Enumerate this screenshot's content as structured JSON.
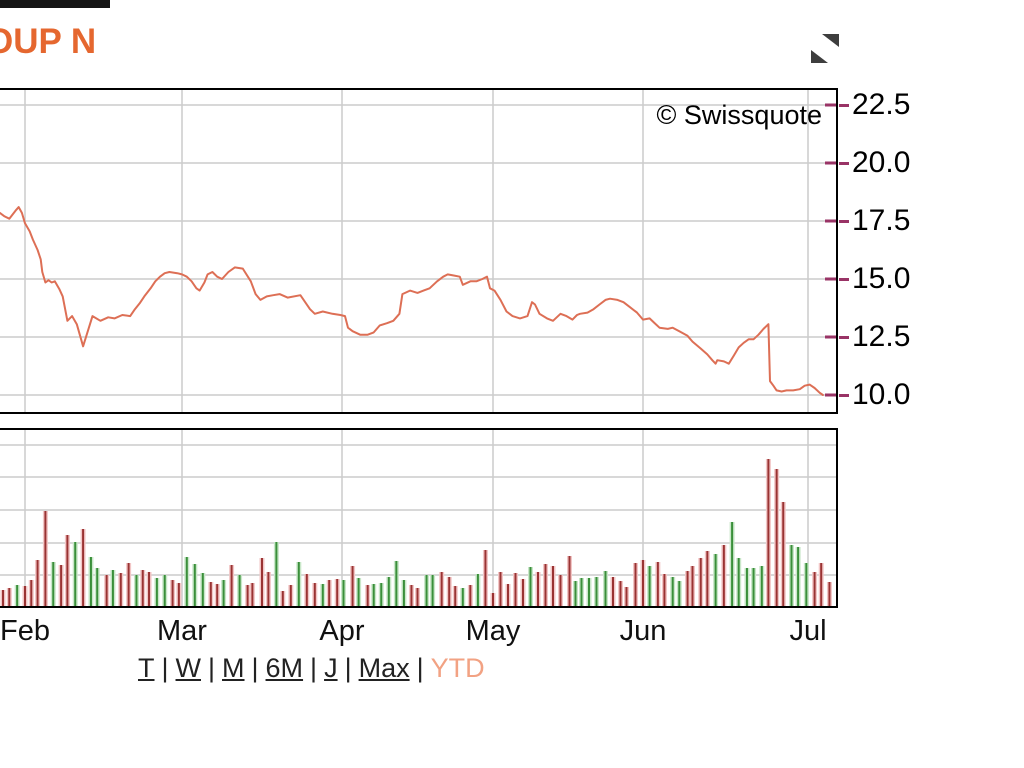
{
  "header": {
    "title_fragment": "OUP N"
  },
  "watermark": "© Swissquote",
  "colors": {
    "title": "#e5672f",
    "price_line": "#dd6f55",
    "grid": "#cccccc",
    "border": "#000000",
    "axis_tick": "#993366",
    "volume_up_core": "#3a8f3a",
    "volume_up_halo": "#c9e7c9",
    "volume_down_core": "#9a3333",
    "volume_down_halo": "#f2c6c6",
    "link": "#222222",
    "link_active": "#f2a283"
  },
  "period_selector": {
    "links": [
      "T",
      "W",
      "M",
      "6M",
      "J",
      "Max"
    ],
    "active": "YTD",
    "separator": "|"
  },
  "chart_data": [
    {
      "type": "line",
      "name": "price",
      "title": "",
      "xlabel": "",
      "ylabel": "",
      "x_unit": "month index (1=Feb, 2=Mar, 3=Apr, 4=May, 5=Jun, 6=Jul)",
      "x_tick_labels": [
        "Feb",
        "Mar",
        "Apr",
        "May",
        "Jun",
        "Jul"
      ],
      "y_ticks": [
        22.5,
        20.0,
        17.5,
        15.0,
        12.5,
        10.0
      ],
      "ylim": [
        9.3,
        23.1
      ],
      "grid": true,
      "legend": false,
      "points": [
        [
          0.84,
          17.85
        ],
        [
          0.87,
          17.7
        ],
        [
          0.9,
          17.6
        ],
        [
          0.94,
          17.95
        ],
        [
          0.96,
          18.1
        ],
        [
          0.98,
          17.85
        ],
        [
          1.0,
          17.4
        ],
        [
          1.03,
          17.05
        ],
        [
          1.05,
          16.7
        ],
        [
          1.08,
          16.25
        ],
        [
          1.1,
          15.85
        ],
        [
          1.11,
          15.3
        ],
        [
          1.13,
          14.85
        ],
        [
          1.15,
          14.95
        ],
        [
          1.17,
          14.85
        ],
        [
          1.19,
          14.9
        ],
        [
          1.22,
          14.55
        ],
        [
          1.24,
          14.25
        ],
        [
          1.27,
          13.2
        ],
        [
          1.3,
          13.4
        ],
        [
          1.33,
          13.05
        ],
        [
          1.37,
          12.1
        ],
        [
          1.4,
          12.75
        ],
        [
          1.43,
          13.4
        ],
        [
          1.48,
          13.2
        ],
        [
          1.53,
          13.35
        ],
        [
          1.57,
          13.3
        ],
        [
          1.62,
          13.45
        ],
        [
          1.67,
          13.4
        ],
        [
          1.7,
          13.7
        ],
        [
          1.73,
          13.95
        ],
        [
          1.76,
          14.25
        ],
        [
          1.8,
          14.6
        ],
        [
          1.83,
          14.9
        ],
        [
          1.86,
          15.1
        ],
        [
          1.89,
          15.25
        ],
        [
          1.92,
          15.3
        ],
        [
          1.97,
          15.25
        ],
        [
          2.0,
          15.2
        ],
        [
          2.03,
          15.1
        ],
        [
          2.06,
          14.9
        ],
        [
          2.09,
          14.6
        ],
        [
          2.11,
          14.5
        ],
        [
          2.14,
          14.85
        ],
        [
          2.16,
          15.2
        ],
        [
          2.19,
          15.3
        ],
        [
          2.22,
          15.1
        ],
        [
          2.25,
          15.0
        ],
        [
          2.29,
          15.3
        ],
        [
          2.33,
          15.5
        ],
        [
          2.38,
          15.45
        ],
        [
          2.43,
          14.9
        ],
        [
          2.46,
          14.35
        ],
        [
          2.49,
          14.1
        ],
        [
          2.53,
          14.25
        ],
        [
          2.57,
          14.3
        ],
        [
          2.61,
          14.35
        ],
        [
          2.66,
          14.2
        ],
        [
          2.74,
          14.3
        ],
        [
          2.8,
          13.7
        ],
        [
          2.83,
          13.5
        ],
        [
          2.88,
          13.6
        ],
        [
          2.94,
          13.5
        ],
        [
          2.99,
          13.45
        ],
        [
          3.02,
          13.4
        ],
        [
          3.04,
          12.9
        ],
        [
          3.07,
          12.75
        ],
        [
          3.12,
          12.6
        ],
        [
          3.17,
          12.6
        ],
        [
          3.21,
          12.7
        ],
        [
          3.25,
          13.0
        ],
        [
          3.3,
          13.1
        ],
        [
          3.34,
          13.2
        ],
        [
          3.38,
          13.5
        ],
        [
          3.4,
          14.35
        ],
        [
          3.45,
          14.5
        ],
        [
          3.5,
          14.4
        ],
        [
          3.54,
          14.5
        ],
        [
          3.58,
          14.6
        ],
        [
          3.63,
          14.9
        ],
        [
          3.67,
          15.1
        ],
        [
          3.7,
          15.2
        ],
        [
          3.74,
          15.15
        ],
        [
          3.78,
          15.1
        ],
        [
          3.8,
          14.75
        ],
        [
          3.85,
          14.9
        ],
        [
          3.89,
          14.9
        ],
        [
          3.93,
          15.0
        ],
        [
          3.96,
          15.1
        ],
        [
          3.98,
          14.6
        ],
        [
          4.01,
          14.5
        ],
        [
          4.05,
          14.1
        ],
        [
          4.09,
          13.6
        ],
        [
          4.13,
          13.4
        ],
        [
          4.18,
          13.3
        ],
        [
          4.23,
          13.4
        ],
        [
          4.26,
          14.0
        ],
        [
          4.28,
          13.9
        ],
        [
          4.31,
          13.5
        ],
        [
          4.36,
          13.3
        ],
        [
          4.4,
          13.2
        ],
        [
          4.45,
          13.5
        ],
        [
          4.49,
          13.4
        ],
        [
          4.53,
          13.25
        ],
        [
          4.56,
          13.45
        ],
        [
          4.58,
          13.5
        ],
        [
          4.63,
          13.55
        ],
        [
          4.67,
          13.7
        ],
        [
          4.71,
          13.9
        ],
        [
          4.75,
          14.1
        ],
        [
          4.78,
          14.15
        ],
        [
          4.83,
          14.1
        ],
        [
          4.87,
          14.0
        ],
        [
          4.91,
          13.8
        ],
        [
          4.96,
          13.55
        ],
        [
          5.0,
          13.25
        ],
        [
          5.04,
          13.3
        ],
        [
          5.07,
          13.1
        ],
        [
          5.1,
          12.9
        ],
        [
          5.15,
          12.85
        ],
        [
          5.18,
          12.9
        ],
        [
          5.22,
          12.75
        ],
        [
          5.27,
          12.55
        ],
        [
          5.3,
          12.3
        ],
        [
          5.35,
          12.0
        ],
        [
          5.39,
          11.75
        ],
        [
          5.42,
          11.5
        ],
        [
          5.44,
          11.35
        ],
        [
          5.45,
          11.5
        ],
        [
          5.49,
          11.45
        ],
        [
          5.52,
          11.35
        ],
        [
          5.55,
          11.7
        ],
        [
          5.58,
          12.05
        ],
        [
          5.61,
          12.25
        ],
        [
          5.64,
          12.4
        ],
        [
          5.67,
          12.4
        ],
        [
          5.7,
          12.6
        ],
        [
          5.73,
          12.85
        ],
        [
          5.76,
          13.05
        ],
        [
          5.77,
          10.6
        ],
        [
          5.79,
          10.4
        ],
        [
          5.81,
          10.2
        ],
        [
          5.84,
          10.15
        ],
        [
          5.87,
          10.2
        ],
        [
          5.91,
          10.2
        ],
        [
          5.95,
          10.25
        ],
        [
          5.98,
          10.4
        ],
        [
          6.01,
          10.45
        ],
        [
          6.04,
          10.3
        ],
        [
          6.07,
          10.1
        ],
        [
          6.09,
          10.0
        ]
      ]
    },
    {
      "type": "bar",
      "name": "volume",
      "units": "relative height (unlabeled axis)",
      "x_unit": "month index (1=Feb ... 6=Jul)",
      "ylim": [
        0,
        176
      ],
      "grid": true,
      "bars": [
        [
          0.86,
          16,
          "d"
        ],
        [
          0.9,
          18,
          "d"
        ],
        [
          0.95,
          21,
          "u"
        ],
        [
          1.0,
          20,
          "d"
        ],
        [
          1.04,
          26,
          "d"
        ],
        [
          1.08,
          46,
          "d"
        ],
        [
          1.13,
          95,
          "d"
        ],
        [
          1.18,
          44,
          "u"
        ],
        [
          1.23,
          41,
          "d"
        ],
        [
          1.27,
          71,
          "d"
        ],
        [
          1.32,
          64,
          "u"
        ],
        [
          1.37,
          77,
          "d"
        ],
        [
          1.42,
          49,
          "u"
        ],
        [
          1.46,
          38,
          "u"
        ],
        [
          1.52,
          31,
          "d"
        ],
        [
          1.56,
          36,
          "u"
        ],
        [
          1.61,
          33,
          "d"
        ],
        [
          1.66,
          43,
          "d"
        ],
        [
          1.71,
          31,
          "u"
        ],
        [
          1.75,
          36,
          "d"
        ],
        [
          1.79,
          34,
          "d"
        ],
        [
          1.84,
          28,
          "u"
        ],
        [
          1.89,
          31,
          "u"
        ],
        [
          1.94,
          26,
          "d"
        ],
        [
          1.98,
          23,
          "d"
        ],
        [
          2.03,
          49,
          "u"
        ],
        [
          2.08,
          42,
          "u"
        ],
        [
          2.13,
          33,
          "u"
        ],
        [
          2.18,
          24,
          "d"
        ],
        [
          2.22,
          22,
          "d"
        ],
        [
          2.26,
          26,
          "u"
        ],
        [
          2.31,
          41,
          "d"
        ],
        [
          2.36,
          31,
          "u"
        ],
        [
          2.41,
          21,
          "d"
        ],
        [
          2.44,
          23,
          "d"
        ],
        [
          2.5,
          48,
          "d"
        ],
        [
          2.54,
          34,
          "d"
        ],
        [
          2.59,
          64,
          "u"
        ],
        [
          2.63,
          15,
          "d"
        ],
        [
          2.68,
          21,
          "d"
        ],
        [
          2.73,
          44,
          "u"
        ],
        [
          2.78,
          32,
          "d"
        ],
        [
          2.83,
          23,
          "d"
        ],
        [
          2.88,
          22,
          "u"
        ],
        [
          2.92,
          26,
          "d"
        ],
        [
          2.97,
          27,
          "d"
        ],
        [
          3.01,
          26,
          "u"
        ],
        [
          3.07,
          40,
          "d"
        ],
        [
          3.11,
          28,
          "u"
        ],
        [
          3.17,
          21,
          "d"
        ],
        [
          3.21,
          22,
          "u"
        ],
        [
          3.26,
          23,
          "u"
        ],
        [
          3.31,
          29,
          "u"
        ],
        [
          3.36,
          45,
          "u"
        ],
        [
          3.41,
          26,
          "u"
        ],
        [
          3.46,
          21,
          "d"
        ],
        [
          3.5,
          18,
          "d"
        ],
        [
          3.56,
          31,
          "u"
        ],
        [
          3.6,
          31,
          "u"
        ],
        [
          3.66,
          34,
          "d"
        ],
        [
          3.71,
          29,
          "d"
        ],
        [
          3.75,
          20,
          "d"
        ],
        [
          3.8,
          18,
          "u"
        ],
        [
          3.85,
          21,
          "d"
        ],
        [
          3.9,
          32,
          "u"
        ],
        [
          3.95,
          56,
          "d"
        ],
        [
          4.0,
          13,
          "d"
        ],
        [
          4.05,
          34,
          "d"
        ],
        [
          4.1,
          22,
          "d"
        ],
        [
          4.15,
          33,
          "d"
        ],
        [
          4.2,
          27,
          "d"
        ],
        [
          4.25,
          39,
          "u"
        ],
        [
          4.3,
          34,
          "d"
        ],
        [
          4.35,
          42,
          "d"
        ],
        [
          4.4,
          40,
          "d"
        ],
        [
          4.45,
          31,
          "d"
        ],
        [
          4.51,
          50,
          "d"
        ],
        [
          4.55,
          25,
          "u"
        ],
        [
          4.59,
          28,
          "u"
        ],
        [
          4.64,
          28,
          "u"
        ],
        [
          4.69,
          29,
          "u"
        ],
        [
          4.75,
          35,
          "u"
        ],
        [
          4.8,
          29,
          "d"
        ],
        [
          4.85,
          25,
          "d"
        ],
        [
          4.89,
          19,
          "d"
        ],
        [
          4.95,
          43,
          "d"
        ],
        [
          5.0,
          46,
          "d"
        ],
        [
          5.04,
          40,
          "u"
        ],
        [
          5.09,
          44,
          "d"
        ],
        [
          5.13,
          32,
          "d"
        ],
        [
          5.18,
          29,
          "u"
        ],
        [
          5.22,
          25,
          "u"
        ],
        [
          5.27,
          35,
          "d"
        ],
        [
          5.3,
          40,
          "d"
        ],
        [
          5.35,
          48,
          "d"
        ],
        [
          5.39,
          55,
          "d"
        ],
        [
          5.44,
          52,
          "u"
        ],
        [
          5.49,
          61,
          "d"
        ],
        [
          5.54,
          84,
          "u"
        ],
        [
          5.58,
          48,
          "u"
        ],
        [
          5.63,
          38,
          "u"
        ],
        [
          5.67,
          38,
          "u"
        ],
        [
          5.72,
          40,
          "u"
        ],
        [
          5.76,
          147,
          "d"
        ],
        [
          5.81,
          137,
          "d"
        ],
        [
          5.85,
          104,
          "d"
        ],
        [
          5.9,
          61,
          "u"
        ],
        [
          5.94,
          59,
          "u"
        ],
        [
          5.99,
          43,
          "u"
        ],
        [
          6.04,
          34,
          "d"
        ],
        [
          6.08,
          43,
          "d"
        ],
        [
          6.13,
          24,
          "d"
        ]
      ]
    }
  ]
}
